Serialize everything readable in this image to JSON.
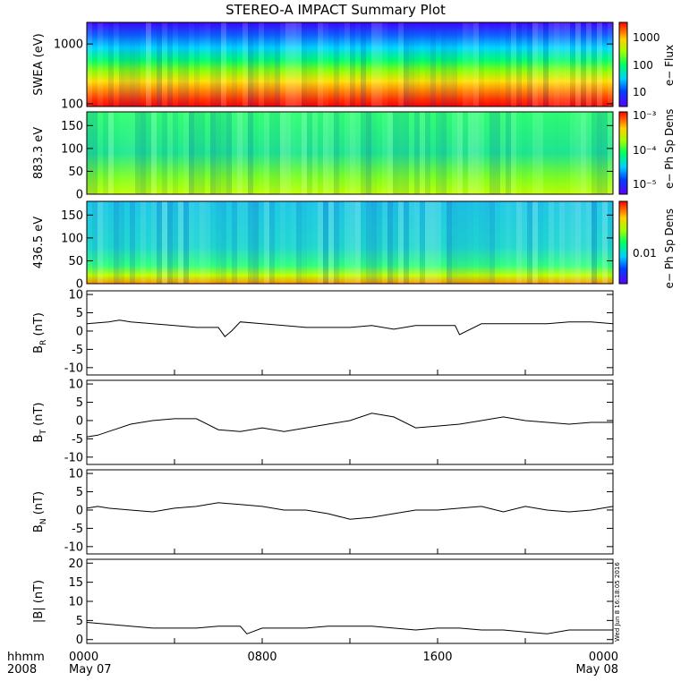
{
  "title": "STEREO-A IMPACT Summary Plot",
  "timestamp": "Wed Jun  8 16:18:05 2016",
  "corner": {
    "format_label": "hhmm",
    "year_label": "2008"
  },
  "x_axis": {
    "ticks": [
      {
        "hour": 0,
        "label": "0000",
        "sublabel": "May 07"
      },
      {
        "hour": 8,
        "label": "0800",
        "sublabel": ""
      },
      {
        "hour": 16,
        "label": "1600",
        "sublabel": ""
      },
      {
        "hour": 24,
        "label": "0000",
        "sublabel": "May 08"
      }
    ]
  },
  "colorbars": [
    {
      "label": "e− Flux",
      "ticks": [
        "1000",
        "100",
        "10"
      ],
      "scale": "log"
    },
    {
      "label": "e− Ph Sp Dens",
      "ticks": [
        "10⁻³",
        "10⁻⁴",
        "10⁻⁵"
      ],
      "scale": "log"
    },
    {
      "label": "e− Ph Sp Dens",
      "ticks": [
        "0.01"
      ],
      "scale": "log"
    }
  ],
  "chart_data": [
    {
      "type": "heatmap",
      "id": "swea",
      "ylabel": "SWEA (eV)",
      "yscale": "log",
      "ylim": [
        90,
        2300
      ],
      "yticks": [
        100,
        1000
      ],
      "ytick_labels": [
        "100",
        "1000"
      ],
      "colorbar": 0
    },
    {
      "type": "heatmap",
      "id": "pad883",
      "ylabel": "883.3 eV",
      "ylim": [
        0,
        180
      ],
      "yticks": [
        0,
        50,
        100,
        150
      ],
      "ytick_labels": [
        "0",
        "50",
        "100",
        "150"
      ],
      "colorbar": 1
    },
    {
      "type": "heatmap",
      "id": "pad436",
      "ylabel": "436.5 eV",
      "ylim": [
        0,
        180
      ],
      "yticks": [
        0,
        50,
        100,
        150
      ],
      "ytick_labels": [
        "0",
        "50",
        "100",
        "150"
      ],
      "colorbar": 2
    },
    {
      "type": "line",
      "id": "BR",
      "ylabel_main": "B",
      "ylabel_sub": "R",
      "ylabel_unit": " (nT)",
      "ylim": [
        -12,
        11
      ],
      "yticks": [
        -10,
        -5,
        0,
        5,
        10
      ],
      "ytick_labels": [
        "-10",
        "-5",
        "0",
        "5",
        "10"
      ],
      "x": [
        0,
        1,
        1.5,
        2,
        3,
        4,
        5,
        6,
        6.3,
        6.6,
        7,
        8,
        9,
        10,
        11,
        12,
        13,
        14,
        15,
        16,
        16.8,
        17,
        18,
        19,
        20,
        21,
        22,
        23,
        24
      ],
      "y": [
        2,
        2.5,
        3,
        2.5,
        2,
        1.5,
        1,
        1,
        -1.5,
        0,
        2.5,
        2,
        1.5,
        1,
        1,
        1,
        1.5,
        0.5,
        1.5,
        1.5,
        1.5,
        -1,
        2,
        2,
        2,
        2,
        2.5,
        2.5,
        2
      ]
    },
    {
      "type": "line",
      "id": "BT",
      "ylabel_main": "B",
      "ylabel_sub": "T",
      "ylabel_unit": " (nT)",
      "ylim": [
        -12,
        11
      ],
      "yticks": [
        -10,
        -5,
        0,
        5,
        10
      ],
      "ytick_labels": [
        "-10",
        "-5",
        "0",
        "5",
        "10"
      ],
      "x": [
        0,
        0.5,
        1,
        2,
        3,
        4,
        5,
        6,
        7,
        8,
        9,
        10,
        11,
        12,
        13,
        14,
        15,
        16,
        17,
        18,
        19,
        20,
        21,
        22,
        23,
        24
      ],
      "y": [
        -4.5,
        -4,
        -3,
        -1,
        0,
        0.5,
        0.5,
        -2.5,
        -3,
        -2,
        -3,
        -2,
        -1,
        0,
        2,
        1,
        -2,
        -1.5,
        -1,
        0,
        1,
        0,
        -0.5,
        -1,
        -0.5,
        -0.5
      ]
    },
    {
      "type": "line",
      "id": "BN",
      "ylabel_main": "B",
      "ylabel_sub": "N",
      "ylabel_unit": " (nT)",
      "ylim": [
        -12,
        11
      ],
      "yticks": [
        -10,
        -5,
        0,
        5,
        10
      ],
      "ytick_labels": [
        "-10",
        "-5",
        "0",
        "5",
        "10"
      ],
      "x": [
        0,
        0.5,
        1,
        2,
        3,
        4,
        5,
        6,
        7,
        8,
        9,
        10,
        11,
        12,
        13,
        14,
        15,
        16,
        17,
        18,
        19,
        20,
        21,
        22,
        23,
        24
      ],
      "y": [
        0.5,
        1,
        0.5,
        0,
        -0.5,
        0.5,
        1,
        2,
        1.5,
        1,
        0,
        0,
        -1,
        -2.5,
        -2,
        -1,
        0,
        0,
        0.5,
        1,
        -0.5,
        1,
        0,
        -0.5,
        0,
        1
      ]
    },
    {
      "type": "line",
      "id": "Bmag",
      "ylabel_main": "|B| (nT)",
      "ylim": [
        -1,
        21
      ],
      "yticks": [
        0,
        5,
        10,
        15,
        20
      ],
      "ytick_labels": [
        "0",
        "5",
        "10",
        "15",
        "20"
      ],
      "x": [
        0,
        1,
        2,
        3,
        4,
        5,
        6,
        7,
        7.3,
        8,
        9,
        10,
        11,
        12,
        13,
        14,
        15,
        16,
        17,
        18,
        19,
        20,
        21,
        22,
        23,
        24
      ],
      "y": [
        4.5,
        4,
        3.5,
        3,
        3,
        3,
        3.5,
        3.5,
        1.5,
        3,
        3,
        3,
        3.5,
        3.5,
        3.5,
        3,
        2.5,
        3,
        3,
        2.5,
        2.5,
        2,
        1.5,
        2.5,
        2.5,
        2.5
      ]
    }
  ]
}
